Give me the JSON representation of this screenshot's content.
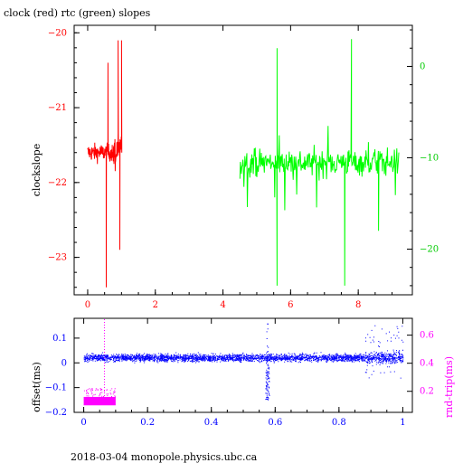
{
  "header": {
    "title": "clock (red) rtc (green) slopes",
    "footer": "2018-03-04 monopole.physics.ubc.ca"
  },
  "colors": {
    "clock": "#ff0000",
    "rtc": "#00ff00",
    "rtc_axis": "#00cc00",
    "offset": "#0000ff",
    "roundtrip": "#ff00ff",
    "frame": "#000000"
  },
  "chart_data": [
    {
      "type": "line",
      "title": "clock (red) rtc (green) slopes",
      "ylabel": "clockslope",
      "xlim": [
        -0.4,
        9.6
      ],
      "ylim": [
        -23.5,
        -19.9
      ],
      "y2lim": [
        -25,
        4.5
      ],
      "x_ticks": [
        "0",
        "2",
        "4",
        "6",
        "8"
      ],
      "y_ticks": [
        "-20",
        "-21",
        "-22",
        "-23"
      ],
      "y2_ticks": [
        "0",
        "-10",
        "-20"
      ],
      "series": [
        {
          "name": "clock",
          "axis": "left",
          "x_range": [
            0,
            1.0
          ],
          "center": -21.6,
          "spread": 0.2,
          "spikes": [
            [
              0.55,
              -23.4
            ],
            [
              0.6,
              -20.4
            ],
            [
              0.9,
              -20.1
            ],
            [
              0.95,
              -22.9
            ],
            [
              1.0,
              -20.1
            ]
          ]
        },
        {
          "name": "rtc",
          "axis": "right",
          "x_range": [
            4.5,
            9.2
          ],
          "center": -10.5,
          "spread": 2.5,
          "spikes": [
            [
              5.6,
              -24
            ],
            [
              5.6,
              2
            ],
            [
              7.6,
              -24
            ],
            [
              7.8,
              3
            ],
            [
              8.6,
              -18
            ]
          ]
        }
      ],
      "grid": false
    },
    {
      "type": "scatter",
      "ylabel": "offset(ms)",
      "y2label": "rnd-trip(ms)",
      "xlim": [
        -0.03,
        1.03
      ],
      "ylim": [
        -0.2,
        0.18
      ],
      "y2lim": [
        0.05,
        0.72
      ],
      "x_ticks": [
        "0",
        "0.2",
        "0.4",
        "0.6",
        "0.8",
        "1"
      ],
      "y_ticks": [
        "0.1",
        "0",
        "-0.1",
        "-0.2"
      ],
      "y2_ticks": [
        "0.6",
        "0.4",
        "0.2"
      ],
      "series": [
        {
          "name": "offset",
          "axis": "left",
          "x_range": [
            0,
            1.0
          ],
          "center": 0.02,
          "spread": 0.025,
          "dip": [
            0.575,
            -0.15
          ]
        },
        {
          "name": "rnd-trip",
          "axis": "right",
          "x_range": [
            0,
            0.1
          ],
          "center": 0.13,
          "spread": 0.03
        }
      ],
      "grid": false
    }
  ]
}
